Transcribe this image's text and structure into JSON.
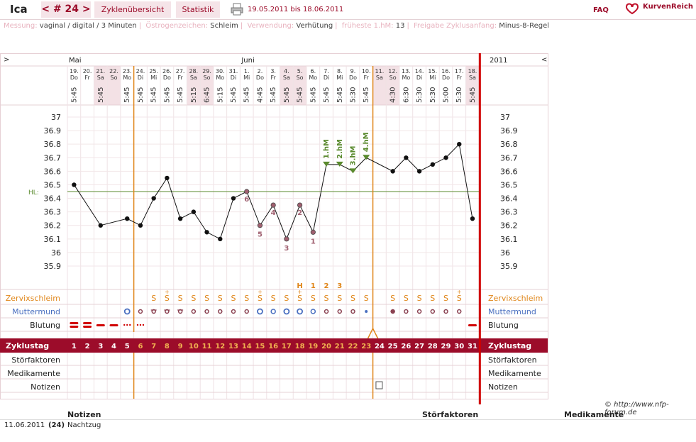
{
  "header": {
    "name": "Ica",
    "cycle_label": "< # 24 >",
    "tab_overview": "Zyklenübersicht",
    "tab_stats": "Statistik",
    "date_range": "19.05.2011 bis 18.06.2011",
    "faq": "FAQ",
    "logo_text": "KurvenReich"
  },
  "info": [
    {
      "label": "Messung:",
      "value": "vaginal / digital / 3 Minuten"
    },
    {
      "label": "Östrogenzeichen:",
      "value": "Schleim"
    },
    {
      "label": "Verwendung:",
      "value": "Verhütung"
    },
    {
      "label": "früheste 1.hM:",
      "value": "13"
    },
    {
      "label": "Freigabe Zyklusanfang:",
      "value": "Minus-8-Regel"
    }
  ],
  "chart": {
    "nav_left": ">",
    "nav_right": "<",
    "year": "2011",
    "months": [
      {
        "label": "Mai",
        "day_index": 0
      },
      {
        "label": "Juni",
        "day_index": 13
      }
    ],
    "days": [
      {
        "d": "19.",
        "w": "Do",
        "t": "5:45"
      },
      {
        "d": "20.",
        "w": "Fr",
        "t": ""
      },
      {
        "d": "21.",
        "w": "Sa",
        "t": "5:45"
      },
      {
        "d": "22.",
        "w": "So",
        "t": ""
      },
      {
        "d": "23.",
        "w": "Mo",
        "t": "5:45"
      },
      {
        "d": "24.",
        "w": "Di",
        "t": "5:45"
      },
      {
        "d": "25.",
        "w": "Mi",
        "t": "5:45"
      },
      {
        "d": "26.",
        "w": "Do",
        "t": "5:45"
      },
      {
        "d": "27.",
        "w": "Fr",
        "t": "5:45"
      },
      {
        "d": "28.",
        "w": "Sa",
        "t": "5:15"
      },
      {
        "d": "29.",
        "w": "So",
        "t": "6:45"
      },
      {
        "d": "30.",
        "w": "Mo",
        "t": "5:15"
      },
      {
        "d": "31.",
        "w": "Di",
        "t": "5:45"
      },
      {
        "d": "1.",
        "w": "Mi",
        "t": "5:45"
      },
      {
        "d": "2.",
        "w": "Do",
        "t": "4:45"
      },
      {
        "d": "3.",
        "w": "Fr",
        "t": "5:45"
      },
      {
        "d": "4.",
        "w": "Sa",
        "t": "5:45"
      },
      {
        "d": "5.",
        "w": "So",
        "t": "5:45"
      },
      {
        "d": "6.",
        "w": "Mo",
        "t": "5:45"
      },
      {
        "d": "7.",
        "w": "Di",
        "t": "5:45"
      },
      {
        "d": "8.",
        "w": "Mi",
        "t": "5:45"
      },
      {
        "d": "9.",
        "w": "Do",
        "t": "5:30"
      },
      {
        "d": "10.",
        "w": "Fr",
        "t": "5:45"
      },
      {
        "d": "11.",
        "w": "Sa",
        "t": ""
      },
      {
        "d": "12.",
        "w": "So",
        "t": "4:30"
      },
      {
        "d": "13.",
        "w": "Mo",
        "t": "6:30"
      },
      {
        "d": "14.",
        "w": "Di",
        "t": "5:30"
      },
      {
        "d": "15.",
        "w": "Mi",
        "t": "5:30"
      },
      {
        "d": "16.",
        "w": "Do",
        "t": "5:00"
      },
      {
        "d": "17.",
        "w": "Fr",
        "t": "5:30"
      },
      {
        "d": "18.",
        "w": "Sa",
        "t": "5:45"
      }
    ],
    "y_ticks": [
      "37",
      "36.9",
      "36.8",
      "36.7",
      "36.6",
      "36.5",
      "36.4",
      "36.3",
      "36.2",
      "36.1",
      "36",
      "35.9"
    ],
    "hl_label": "HL:",
    "row_labels": {
      "cervix": "Zervixschleim",
      "mm": "Muttermund",
      "bleed": "Blutung",
      "cycle": "Zyklustag",
      "stoer": "Störfaktoren",
      "medi": "Medikamente",
      "notes": "Notizen"
    },
    "copyright": "© http://www.nfp-forum.de",
    "cervix_marks": [
      "",
      "",
      "",
      "",
      "",
      "",
      "S",
      "S",
      "S",
      "S",
      "S",
      "S",
      "S",
      "S",
      "S",
      "S",
      "S",
      "S",
      "S",
      "S",
      "S",
      "S",
      "S",
      "",
      "S",
      "S",
      "S",
      "S",
      "S",
      "S",
      ""
    ],
    "plus_days": [
      7,
      14,
      17,
      29
    ],
    "mucus_labels": [
      {
        "i": 17,
        "t": "H"
      },
      {
        "i": 18,
        "t": "1"
      },
      {
        "i": 19,
        "t": "2"
      },
      {
        "i": 20,
        "t": "3"
      }
    ],
    "hm_labels": [
      {
        "i": 19,
        "t": "1.hM"
      },
      {
        "i": 20,
        "t": "2.hM"
      },
      {
        "i": 21,
        "t": "3.hM"
      },
      {
        "i": 22,
        "t": "4.hM"
      }
    ],
    "count_labels": [
      {
        "i": 13,
        "t": "6"
      },
      {
        "i": 14,
        "t": "5"
      },
      {
        "i": 15,
        "t": "4"
      },
      {
        "i": 16,
        "t": "3"
      },
      {
        "i": 17,
        "t": "2"
      },
      {
        "i": 18,
        "t": "1"
      }
    ]
  },
  "chart_data": {
    "type": "line",
    "x": [
      "19.",
      "20.",
      "21.",
      "22.",
      "23.",
      "24.",
      "25.",
      "26.",
      "27.",
      "28.",
      "29.",
      "30.",
      "31.",
      "1.",
      "2.",
      "3.",
      "4.",
      "5.",
      "6.",
      "7.",
      "8.",
      "9.",
      "10.",
      "11.",
      "12.",
      "13.",
      "14.",
      "15.",
      "16.",
      "17.",
      "18."
    ],
    "values": [
      36.5,
      null,
      36.2,
      null,
      36.25,
      36.2,
      36.4,
      36.55,
      36.25,
      36.3,
      36.15,
      36.1,
      36.4,
      36.45,
      36.2,
      36.35,
      36.1,
      36.35,
      36.15,
      36.65,
      36.65,
      36.6,
      36.7,
      null,
      36.6,
      36.7,
      36.6,
      36.65,
      36.7,
      36.8,
      36.25
    ],
    "hl_value": 36.45,
    "ylim": [
      35.9,
      37
    ],
    "cycle_days": [
      "1",
      "2",
      "3",
      "4",
      "5",
      "6",
      "7",
      "8",
      "9",
      "10",
      "11",
      "12",
      "13",
      "14",
      "15",
      "16",
      "17",
      "18",
      "19",
      "20",
      "21",
      "22",
      "23",
      "24",
      "25",
      "26",
      "27",
      "28",
      "29",
      "30",
      "31"
    ]
  },
  "notes": {
    "head_notes": "Notizen",
    "head_stoer": "Störfaktoren",
    "head_medi": "Medikamente",
    "row": {
      "date": "11.06.2011",
      "cycle": "(24)",
      "text": "Nachtzug"
    }
  },
  "colors": {
    "accent": "#9c0c2a",
    "orange": "#e0861a",
    "green": "#5a8a2e",
    "blue": "#4a6fc0"
  }
}
